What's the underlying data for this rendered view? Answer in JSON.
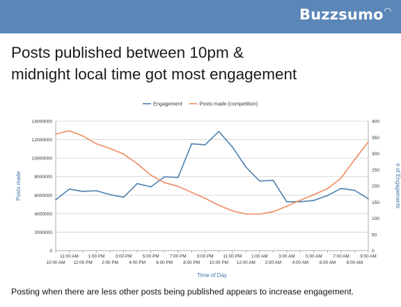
{
  "header": {
    "brand": "Buzzsumo",
    "bar_color": "#5b86b8"
  },
  "slide": {
    "title_line1": "Posts published between 10pm &",
    "title_line2": "midnight local time got most engagement",
    "caption": "Posting when there are less other posts being published appears to increase engagement."
  },
  "chart_data": {
    "type": "line",
    "title": "",
    "xlabel": "Time of Day",
    "ylabel": "Posts made",
    "y2label": "# of Engagements",
    "categories": [
      "10:00 AM",
      "11:00 AM",
      "12:00 PM",
      "1:00 PM",
      "2:00 PM",
      "3:00 PM",
      "4:00 PM",
      "5:00 PM",
      "6:00 PM",
      "7:00 PM",
      "8:00 PM",
      "9:00 PM",
      "10:00 PM",
      "11:00 PM",
      "12:00 AM",
      "1:00 AM",
      "2:00 AM",
      "3:00 AM",
      "4:00 AM",
      "5:00 AM",
      "6:00 AM",
      "7:00 AM",
      "8:00 AM",
      "9:00 AM"
    ],
    "ylim": [
      0,
      14000000
    ],
    "y2lim": [
      0,
      400
    ],
    "yticks": [
      "0",
      "2000000",
      "4000000",
      "6000000",
      "8000000",
      "10000000",
      "12000000",
      "14000000"
    ],
    "y2ticks": [
      "0",
      "50",
      "100",
      "150",
      "200",
      "250",
      "300",
      "350",
      "400"
    ],
    "legend_position": "top",
    "grid": "horizontal",
    "series": [
      {
        "name": "Engagement",
        "axis": "right",
        "color": "#4a7fae",
        "values": [
          157,
          190,
          183,
          185,
          173,
          165,
          207,
          197,
          228,
          226,
          330,
          327,
          368,
          320,
          258,
          215,
          217,
          151,
          151,
          155,
          170,
          192,
          186,
          160
        ]
      },
      {
        "name": "Posts made (competition)",
        "axis": "left",
        "color": "#ed8a5f",
        "values": [
          12600000,
          12950000,
          12400000,
          11550000,
          11050000,
          10450000,
          9400000,
          8150000,
          7350000,
          6950000,
          6300000,
          5650000,
          4900000,
          4300000,
          3950000,
          3950000,
          4200000,
          4800000,
          5450000,
          6050000,
          6700000,
          7850000,
          9850000,
          11750000
        ]
      }
    ]
  }
}
